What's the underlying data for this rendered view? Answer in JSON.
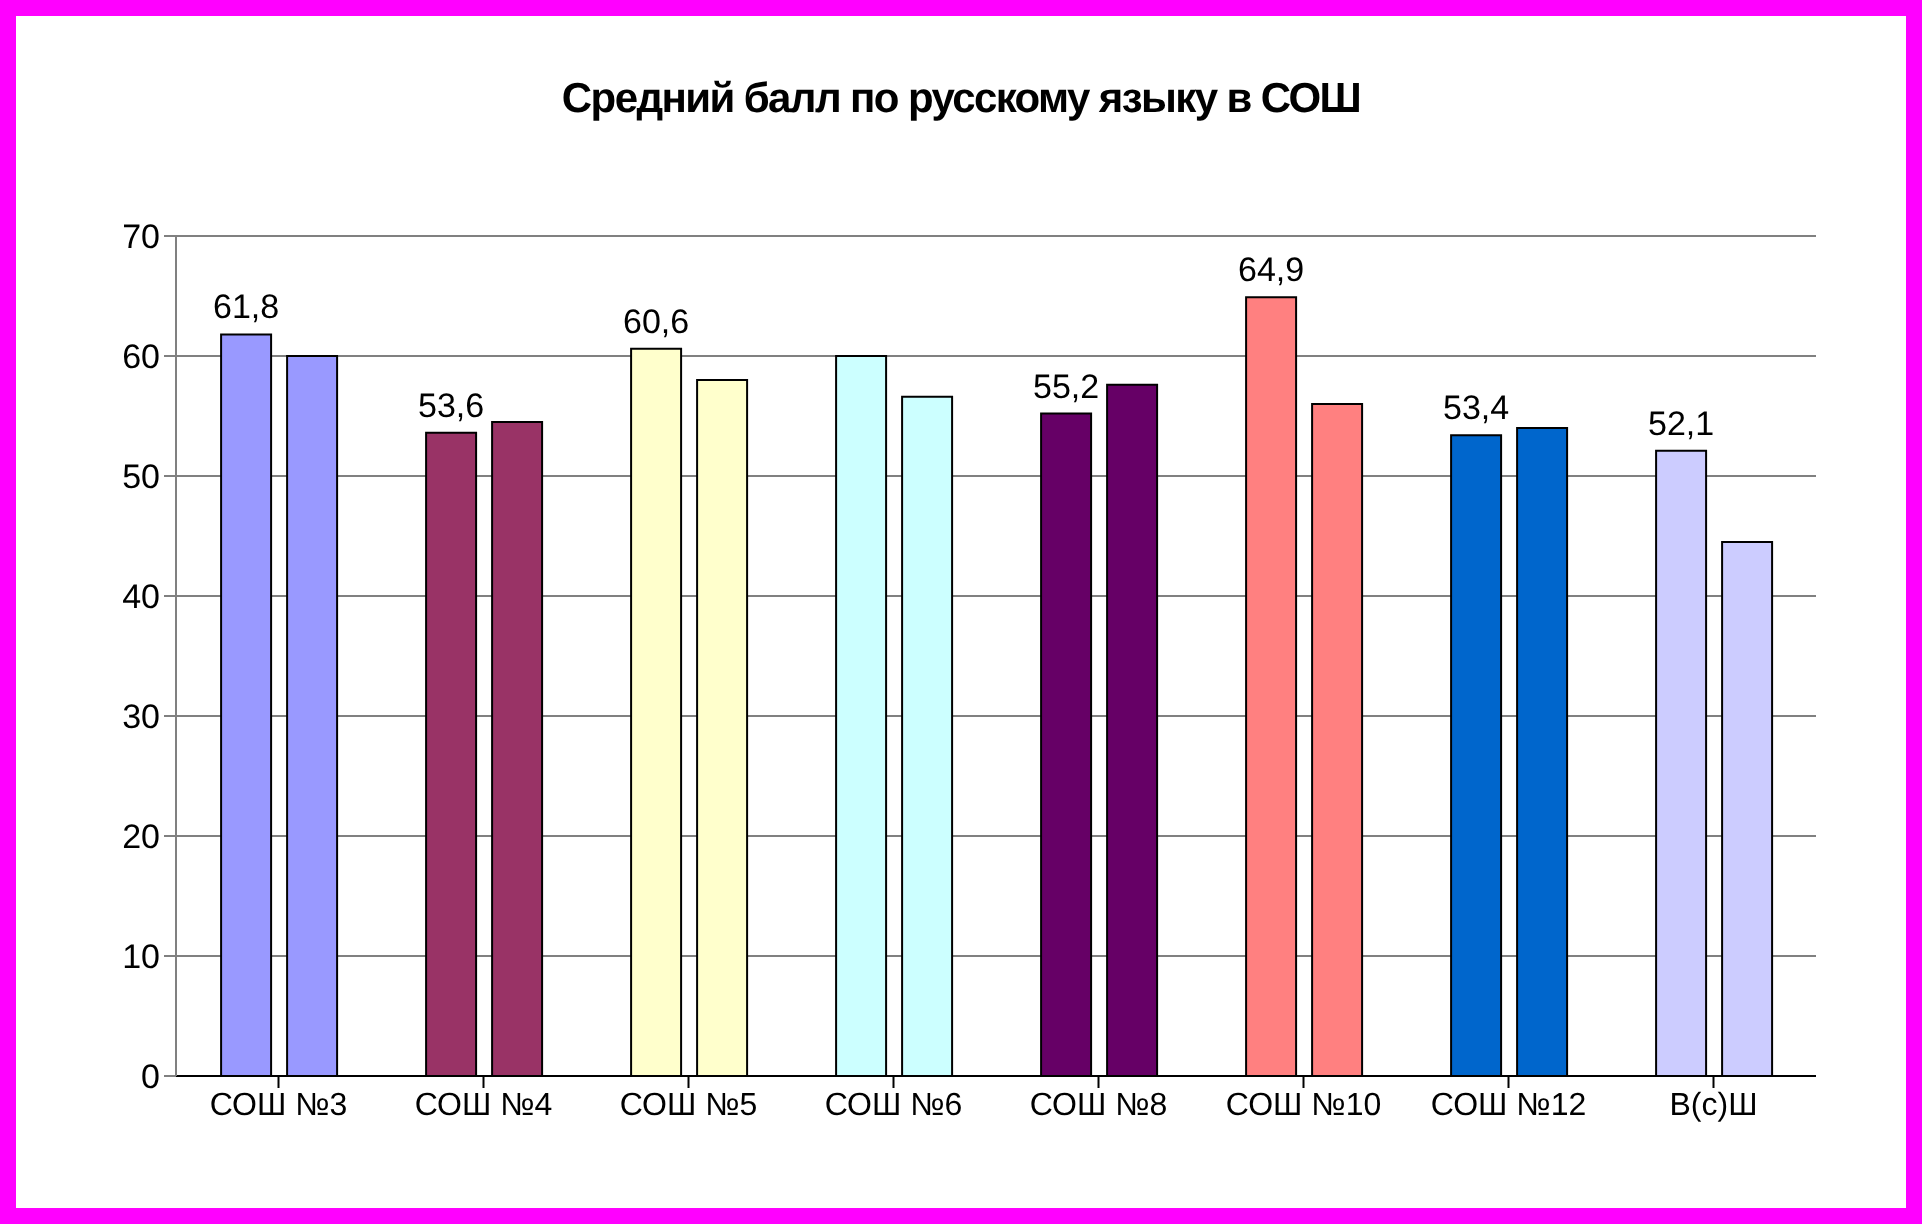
{
  "chart_data": {
    "type": "bar",
    "title": "Средний балл по русскому языку в СОШ",
    "categories": [
      "СОШ №3",
      "СОШ №4",
      "СОШ №5",
      "СОШ №6",
      "СОШ №8",
      "СОШ №10",
      "СОШ №12",
      "В(с)Ш"
    ],
    "series": [
      {
        "values": [
          61.8,
          53.6,
          60.6,
          60,
          55.2,
          64.9,
          53.4,
          52.1
        ],
        "value_labels": [
          "61,8",
          "53,6",
          "60,6",
          null,
          "55,2",
          "64,9",
          "53,4",
          "52,1"
        ],
        "colors": [
          "#9999ff",
          "#993366",
          "#ffffcc",
          "#ccffff",
          "#660066",
          "#ff8080",
          "#0066cc",
          "#ccccff"
        ]
      },
      {
        "values": [
          60,
          54.5,
          58,
          56.6,
          57.6,
          56,
          54,
          44.5
        ],
        "colors": [
          "#9999ff",
          "#993366",
          "#ffffcc",
          "#ccffff",
          "#660066",
          "#ff8080",
          "#0066cc",
          "#ccccff"
        ]
      }
    ],
    "ylim": [
      0,
      70
    ],
    "yticks": [
      0,
      10,
      20,
      30,
      40,
      50,
      60,
      70
    ],
    "grid": "y"
  }
}
